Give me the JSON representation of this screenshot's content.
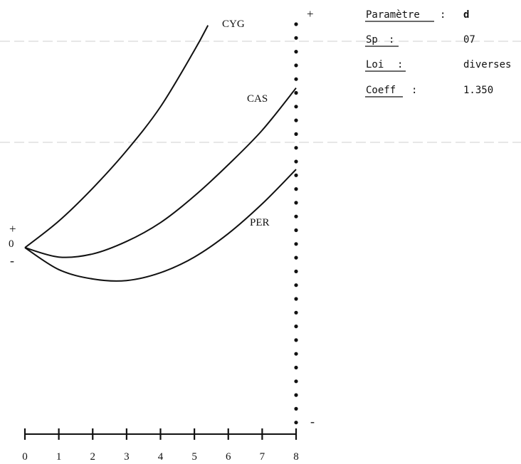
{
  "chart_data": {
    "type": "line",
    "x_ticks": [
      "0",
      "1",
      "2",
      "3",
      "4",
      "5",
      "6",
      "7",
      "8"
    ],
    "xlim": [
      0,
      8
    ],
    "ylim": [
      -3.5,
      7.2
    ],
    "y_zero_label": "0",
    "y_plus_label": "+",
    "y_minus_label": "-",
    "right_plus_label": "+",
    "right_minus_label": "-",
    "series": [
      {
        "name": "CYG",
        "x": [
          0,
          1,
          2,
          3,
          4,
          5,
          5.4
        ],
        "y": [
          0,
          0.85,
          1.9,
          3.1,
          4.5,
          6.3,
          7.1
        ]
      },
      {
        "name": "CAS",
        "x": [
          0,
          1,
          2,
          3,
          4,
          5,
          6,
          7,
          8
        ],
        "y": [
          0,
          -0.3,
          -0.2,
          0.2,
          0.8,
          1.65,
          2.65,
          3.75,
          5.1
        ]
      },
      {
        "name": "PER",
        "x": [
          0,
          1,
          2,
          3,
          4,
          5,
          6,
          7,
          8
        ],
        "y": [
          0,
          -0.7,
          -1.0,
          -1.05,
          -0.8,
          -0.3,
          0.45,
          1.4,
          2.5
        ]
      }
    ]
  },
  "params": [
    {
      "label": "Paramètre",
      "sep": ":",
      "value": "d"
    },
    {
      "label": "Sp",
      "sep": ":",
      "value": "07"
    },
    {
      "label": "Loi",
      "sep": ":",
      "value": "diverses"
    },
    {
      "label": "Coeff",
      "sep": ":",
      "value": "1.350"
    }
  ]
}
